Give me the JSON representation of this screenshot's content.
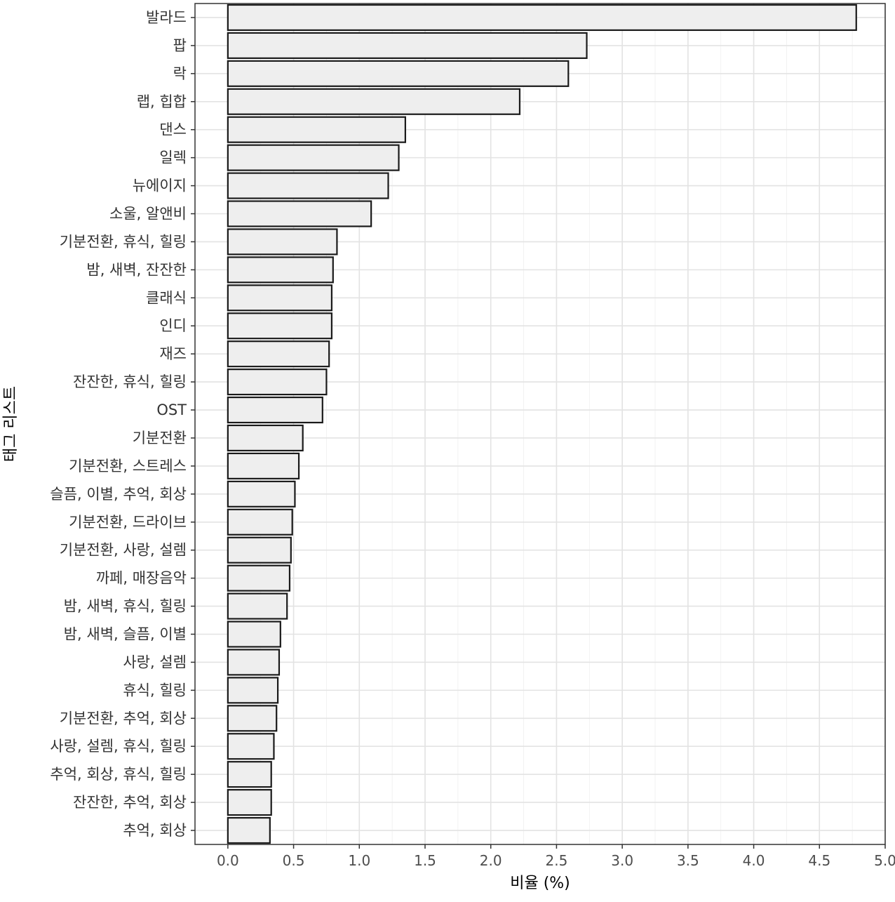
{
  "chart_data": {
    "type": "bar",
    "orientation": "horizontal",
    "xlabel": "비율 (%)",
    "ylabel": "태그 리스트",
    "xlim": [
      -0.25,
      5.0
    ],
    "xticks": [
      "0.0",
      "0.5",
      "1.0",
      "1.5",
      "2.0",
      "2.5",
      "3.0",
      "3.5",
      "4.0",
      "4.5",
      "5.0"
    ],
    "grid": true,
    "legend": "none",
    "categories": [
      "발라드",
      "팝",
      "락",
      "랩, 힙합",
      "댄스",
      "일렉",
      "뉴에이지",
      "소울, 알앤비",
      "기분전환, 휴식, 힐링",
      "밤, 새벽, 잔잔한",
      "클래식",
      "인디",
      "재즈",
      "잔잔한, 휴식, 힐링",
      "OST",
      "기분전환",
      "기분전환, 스트레스",
      "슬픔, 이별, 추억, 회상",
      "기분전환, 드라이브",
      "기분전환, 사랑, 설렘",
      "까페, 매장음악",
      "밤, 새벽, 휴식, 힐링",
      "밤, 새벽, 슬픔, 이별",
      "사랑, 설렘",
      "휴식, 힐링",
      "기분전환, 추억, 회상",
      "사랑, 설렘, 휴식, 힐링",
      "추억, 회상, 휴식, 힐링",
      "잔잔한, 추억, 회상",
      "추억, 회상"
    ],
    "values": [
      4.78,
      2.73,
      2.59,
      2.22,
      1.35,
      1.3,
      1.22,
      1.09,
      0.83,
      0.8,
      0.79,
      0.79,
      0.77,
      0.75,
      0.72,
      0.57,
      0.54,
      0.51,
      0.49,
      0.48,
      0.47,
      0.45,
      0.4,
      0.39,
      0.38,
      0.37,
      0.35,
      0.33,
      0.33,
      0.32
    ],
    "colors": {
      "bar_fill": "#eeeeee",
      "bar_stroke": "#1a1a1a",
      "grid": "#e3e3e3",
      "panel_border": "#333333"
    }
  }
}
